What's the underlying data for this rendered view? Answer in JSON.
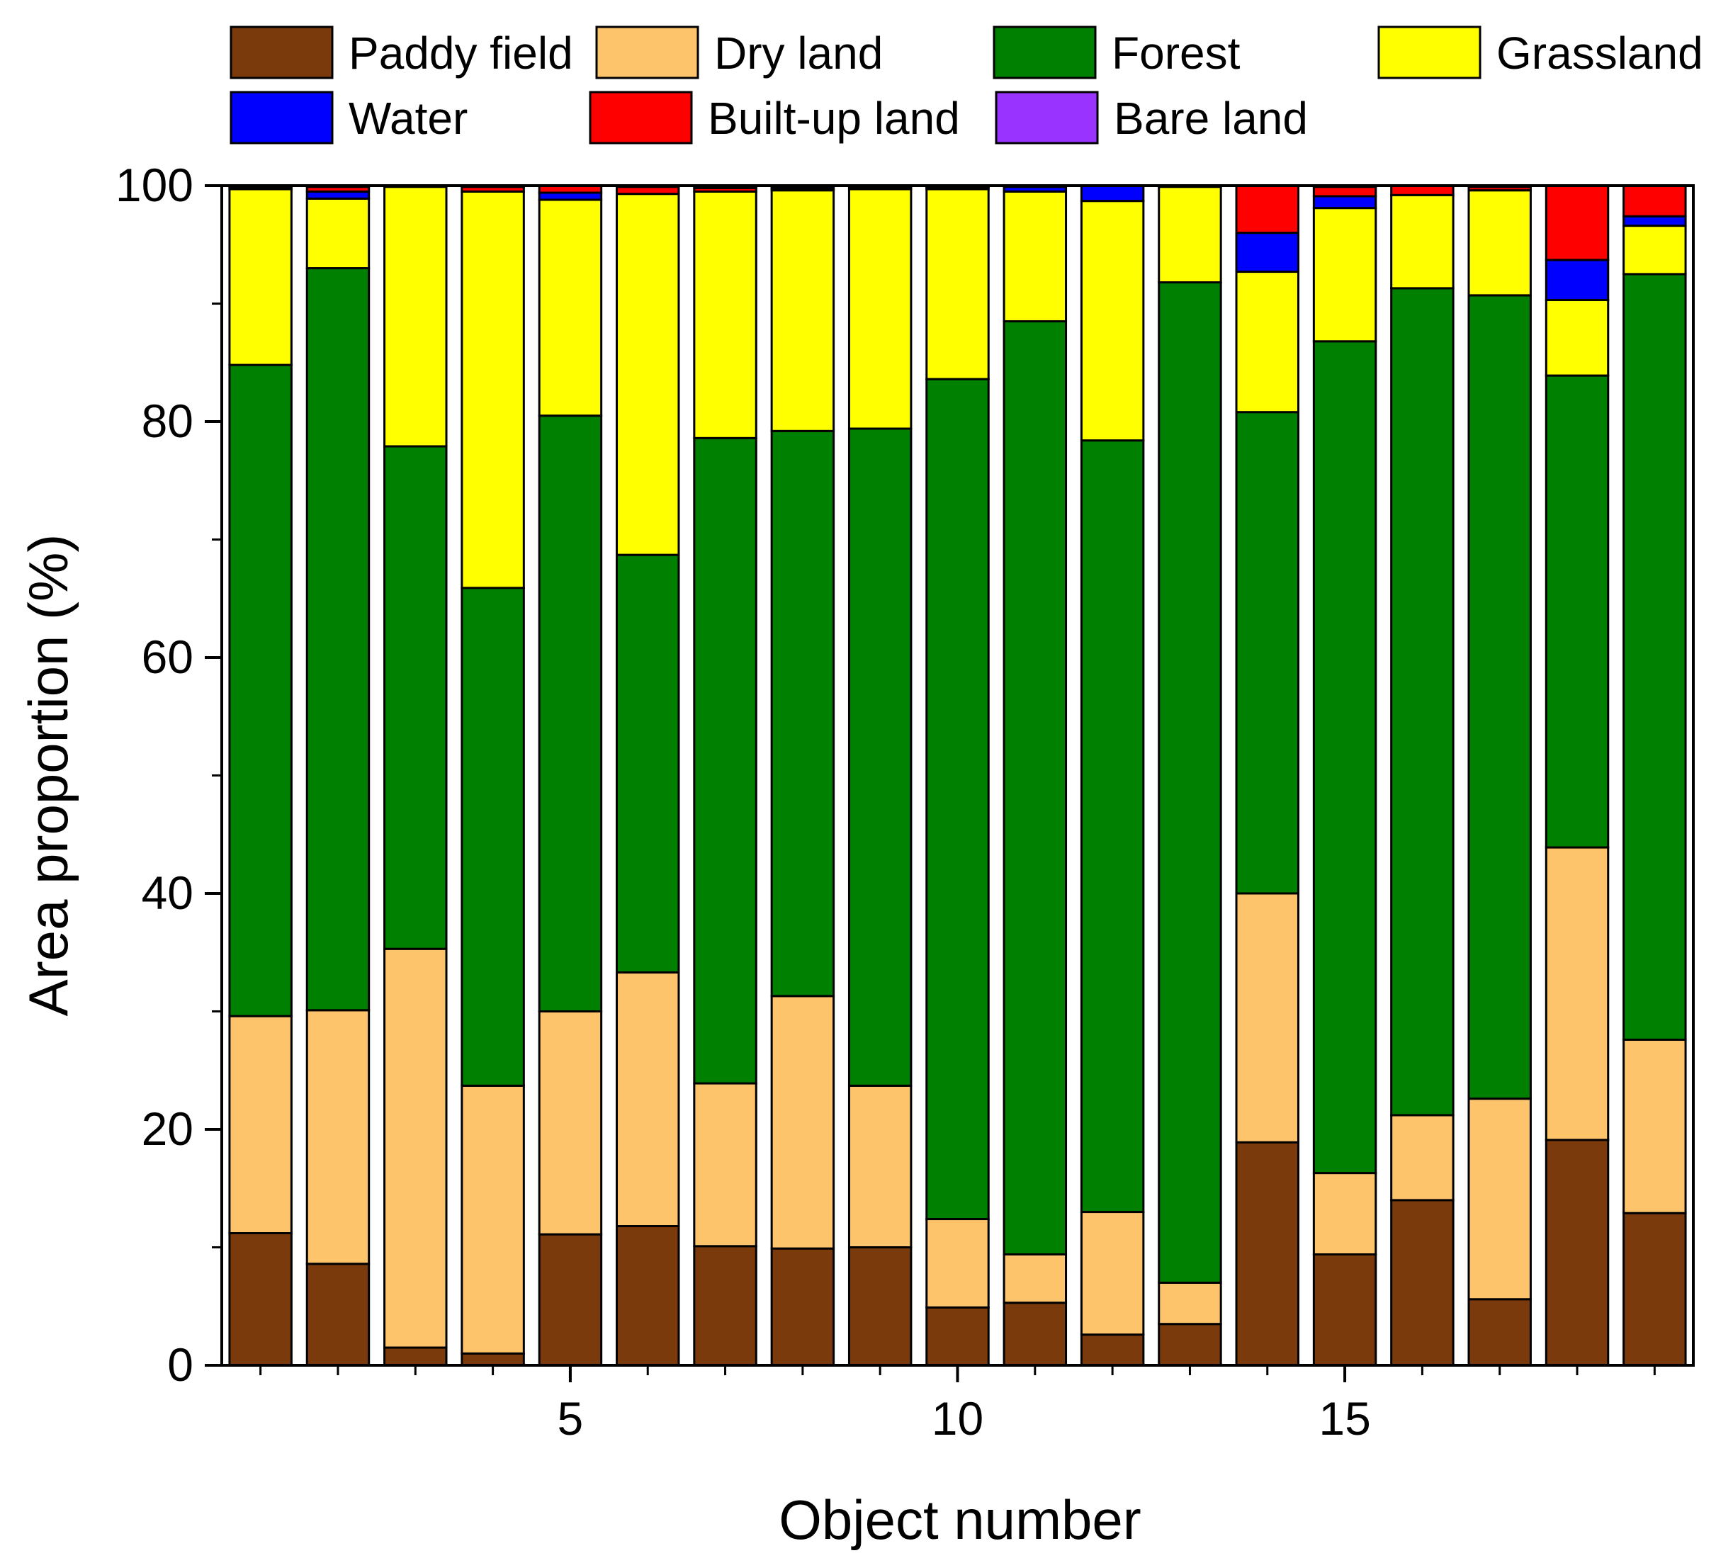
{
  "chart_data": {
    "type": "bar",
    "stacked": true,
    "title": "",
    "xlabel": "Object number",
    "ylabel": "Area proportion (%)",
    "ylim": [
      0,
      100
    ],
    "xlim": [
      0.5,
      19.5
    ],
    "yticks": [
      0,
      20,
      40,
      60,
      80,
      100
    ],
    "xticks": [
      5,
      10,
      15
    ],
    "legend_position": "top",
    "x": [
      1,
      2,
      3,
      4,
      5,
      6,
      7,
      8,
      9,
      10,
      11,
      12,
      13,
      14,
      15,
      16,
      17,
      18,
      19
    ],
    "series": [
      {
        "name": "Paddy field",
        "color": "#7b3a0b",
        "values": [
          11.2,
          8.6,
          1.5,
          1.0,
          11.1,
          11.8,
          10.1,
          9.9,
          10.0,
          4.9,
          5.3,
          2.6,
          3.5,
          18.9,
          9.4,
          14.0,
          5.6,
          19.1,
          12.9
        ]
      },
      {
        "name": "Dry land",
        "color": "#fec46c",
        "values": [
          18.4,
          21.5,
          33.8,
          22.7,
          18.9,
          21.5,
          13.8,
          21.4,
          13.7,
          7.5,
          4.1,
          10.4,
          3.5,
          21.1,
          6.9,
          7.2,
          17.0,
          24.8,
          14.7
        ]
      },
      {
        "name": "Forest",
        "color": "#008000",
        "values": [
          55.2,
          62.9,
          42.6,
          42.2,
          50.5,
          35.4,
          54.7,
          47.9,
          55.7,
          71.2,
          79.1,
          65.4,
          84.8,
          40.8,
          70.5,
          70.1,
          68.1,
          40.0,
          64.9
        ]
      },
      {
        "name": "Grassland",
        "color": "#ffff00",
        "values": [
          14.9,
          5.9,
          22.0,
          33.6,
          18.3,
          30.6,
          20.9,
          20.4,
          20.3,
          16.1,
          11.0,
          20.3,
          8.1,
          11.9,
          11.3,
          7.9,
          8.9,
          6.4,
          4.1
        ]
      },
      {
        "name": "Water",
        "color": "#0000ff",
        "values": [
          0.1,
          0.6,
          0.0,
          0.0,
          0.6,
          0.0,
          0.0,
          0.1,
          0.1,
          0.1,
          0.4,
          1.3,
          0.0,
          3.3,
          1.0,
          0.0,
          0.0,
          3.4,
          0.8
        ]
      },
      {
        "name": "Built-up land",
        "color": "#ff0000",
        "values": [
          0.1,
          0.4,
          0.1,
          0.4,
          0.6,
          0.6,
          0.3,
          0.1,
          0.1,
          0.1,
          0.1,
          0.0,
          0.1,
          4.0,
          0.8,
          0.8,
          0.3,
          6.3,
          2.6
        ]
      },
      {
        "name": "Bare land",
        "color": "#9933ff",
        "values": [
          0.1,
          0.1,
          0.0,
          0.1,
          0.0,
          0.1,
          0.2,
          0.2,
          0.1,
          0.1,
          0.0,
          0.0,
          0.0,
          0.0,
          0.1,
          0.0,
          0.1,
          0.0,
          0.0
        ]
      }
    ]
  }
}
